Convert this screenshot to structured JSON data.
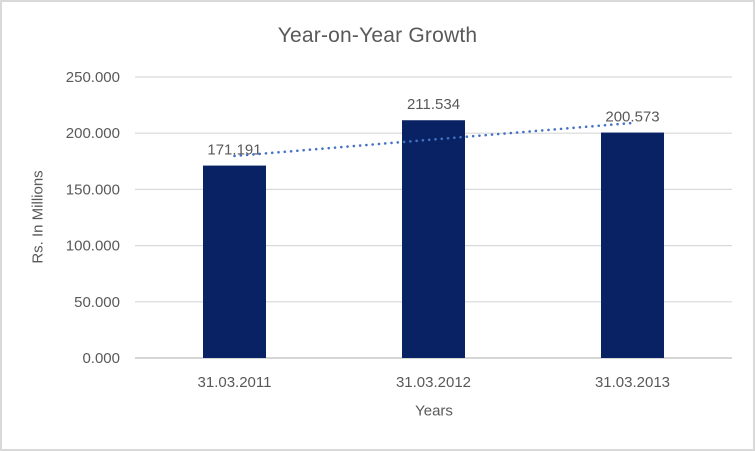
{
  "chart_data": {
    "type": "bar",
    "title": "Year-on-Year Growth",
    "xlabel": "Years",
    "ylabel": "Rs. In Millions",
    "categories": [
      "31.03.2011",
      "31.03.2012",
      "31.03.2013"
    ],
    "values": [
      171.191,
      211.534,
      200.573
    ],
    "data_labels": [
      "171.191",
      "211.534",
      "200.573"
    ],
    "yticks": [
      {
        "value": 0,
        "label": "0.000"
      },
      {
        "value": 50,
        "label": "50.000"
      },
      {
        "value": 100,
        "label": "100.000"
      },
      {
        "value": 150,
        "label": "150.000"
      },
      {
        "value": 200,
        "label": "200.000"
      },
      {
        "value": 250,
        "label": "250.000"
      }
    ],
    "ylim": [
      0,
      250
    ],
    "grid": true,
    "legend": "none",
    "trendline": {
      "type": "linear",
      "style": "dotted",
      "values": [
        179.74,
        194.43,
        209.12
      ]
    },
    "colors": {
      "bar": "#082264",
      "trendline": "#4472C4",
      "gridline": "#D9D9D9",
      "axis_line": "#C9C9C9",
      "text": "#595959",
      "title": "#595959",
      "chart_border": "#D9D9D9",
      "background": "#FFFFFF"
    }
  }
}
